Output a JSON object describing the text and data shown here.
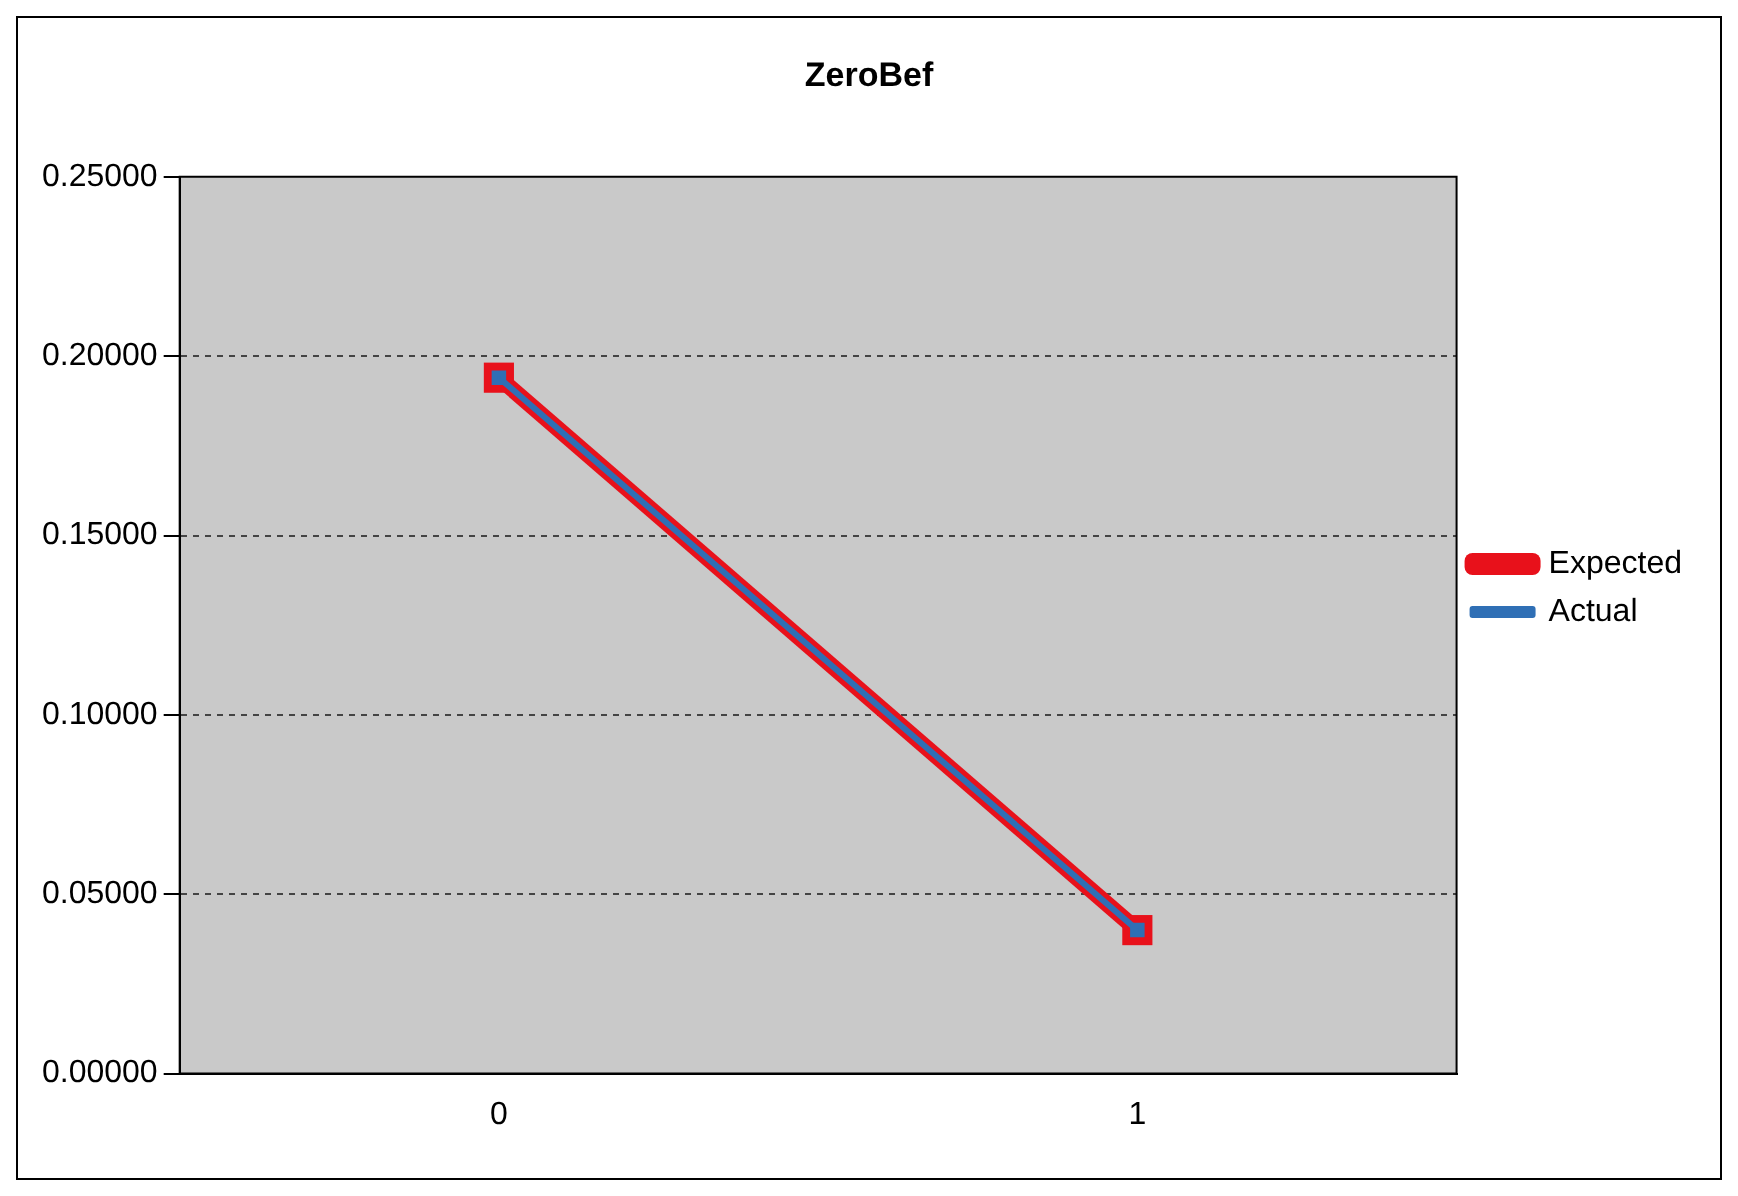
{
  "chart_data": {
    "type": "line",
    "title": "ZeroBef",
    "categories": [
      "0",
      "1"
    ],
    "series": [
      {
        "name": "Expected",
        "color": "#e8111b",
        "values": [
          0.194,
          0.04
        ]
      },
      {
        "name": "Actual",
        "color": "#2f6fb5",
        "values": [
          0.194,
          0.04
        ]
      }
    ],
    "ylim": [
      0,
      0.25
    ],
    "yticks": [
      {
        "value": 0,
        "label": "0.00000"
      },
      {
        "value": 0.05,
        "label": "0.05000"
      },
      {
        "value": 0.1,
        "label": "0.10000"
      },
      {
        "value": 0.15,
        "label": "0.15000"
      },
      {
        "value": 0.2,
        "label": "0.20000"
      },
      {
        "value": 0.25,
        "label": "0.25000"
      }
    ],
    "grid": "y",
    "legend": "right",
    "marker": "square",
    "line_style": "solid"
  }
}
